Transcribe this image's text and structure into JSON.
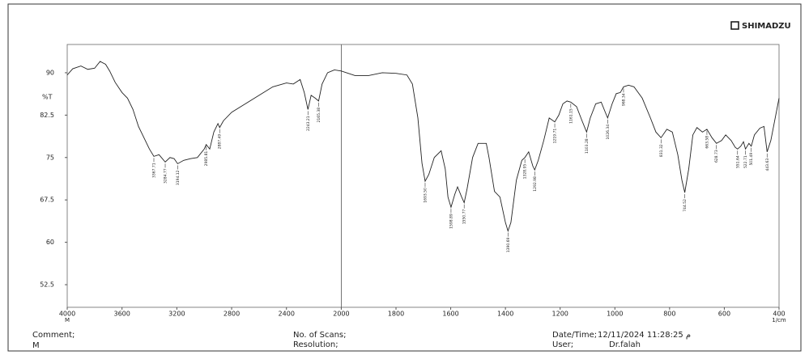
{
  "chart_data": {
    "type": "line",
    "brand": "SHIMADZU",
    "ylabel": "%T",
    "xlabel": "1/cm",
    "xlabel_left": "M",
    "color": "#222222",
    "xlim": [
      4000,
      400
    ],
    "x_break": 2000,
    "ylim": [
      48.5,
      95
    ],
    "xticks": [
      4000,
      3600,
      3200,
      2800,
      2400,
      2000,
      1800,
      1600,
      1400,
      1200,
      1000,
      800,
      600,
      400
    ],
    "yticks": [
      52.5,
      60,
      67.5,
      75,
      82.5,
      90
    ],
    "x": [
      4000,
      3960,
      3900,
      3850,
      3800,
      3760,
      3720,
      3690,
      3650,
      3600,
      3560,
      3520,
      3480,
      3440,
      3400,
      3367.71,
      3330,
      3284.77,
      3250,
      3220,
      3194.12,
      3150,
      3100,
      3050,
      3000,
      2985.81,
      2960,
      2930,
      2900,
      2887.49,
      2860,
      2800,
      2700,
      2600,
      2500,
      2400,
      2350,
      2300,
      2270,
      2243.21,
      2220,
      2190,
      2165.38,
      2140,
      2100,
      2050,
      2000,
      1950,
      1900,
      1850,
      1800,
      1760,
      1740,
      1720,
      1705,
      1693.5,
      1680,
      1660,
      1635,
      1620,
      1610,
      1598.89,
      1585,
      1575,
      1560,
      1550.77,
      1540,
      1520,
      1500,
      1470,
      1460,
      1440,
      1420,
      1400,
      1390.69,
      1380,
      1360,
      1340,
      1328.95,
      1315,
      1300,
      1292.98,
      1280,
      1260,
      1240,
      1219.71,
      1205,
      1190,
      1175,
      1161.15,
      1140,
      1120,
      1103.28,
      1090,
      1070,
      1050,
      1035,
      1026.34,
      1010,
      995,
      980,
      968.34,
      950,
      930,
      900,
      870,
      850,
      831.32,
      810,
      790,
      770,
      755,
      744.52,
      730,
      715,
      700,
      680,
      663.58,
      645,
      628.73,
      610,
      595,
      575,
      560,
      551.64,
      540,
      530,
      522.71,
      510,
      501.49,
      490,
      470,
      455,
      443.63,
      430,
      410,
      400
    ],
    "values": [
      89.6,
      90.7,
      91.2,
      90.6,
      90.8,
      92.0,
      91.5,
      90.3,
      88.3,
      86.5,
      85.5,
      83.5,
      80.5,
      78.5,
      76.5,
      75.2,
      75.5,
      74.2,
      75.0,
      74.8,
      73.9,
      74.5,
      74.8,
      75.0,
      76.5,
      77.3,
      76.5,
      79.5,
      81.0,
      80.3,
      81.5,
      83.0,
      84.5,
      86.0,
      87.5,
      88.2,
      88.0,
      88.8,
      86.5,
      83.5,
      86.0,
      85.5,
      85.0,
      88.0,
      90.0,
      90.5,
      90.3,
      89.5,
      89.5,
      90.0,
      89.9,
      89.6,
      88.0,
      82.0,
      74.0,
      70.8,
      72.0,
      75.0,
      76.2,
      73.0,
      68.0,
      66.2,
      68.5,
      69.8,
      68.0,
      67.0,
      69.5,
      75.0,
      77.5,
      77.5,
      75.0,
      69.0,
      68.0,
      63.5,
      62.0,
      63.5,
      71.0,
      74.5,
      75.0,
      76.0,
      73.5,
      72.8,
      74.5,
      78.0,
      82.0,
      81.3,
      82.5,
      84.5,
      85.0,
      84.8,
      84.0,
      81.5,
      79.5,
      82.0,
      84.5,
      84.8,
      83.0,
      82.0,
      84.5,
      86.3,
      86.5,
      87.5,
      87.8,
      87.5,
      85.5,
      82.0,
      79.5,
      78.5,
      80.0,
      79.5,
      75.5,
      71.0,
      68.8,
      73.0,
      79.0,
      80.3,
      79.5,
      80.0,
      78.5,
      77.5,
      78.0,
      79.0,
      78.0,
      76.8,
      76.5,
      77.0,
      77.8,
      76.5,
      77.5,
      77.0,
      79.0,
      80.2,
      80.5,
      76.0,
      78.0,
      83.0,
      85.5
    ],
    "peaks": [
      {
        "x": 3367.71,
        "y": 75.2,
        "label": "3367.71"
      },
      {
        "x": 3284.77,
        "y": 74.2,
        "label": "3284.77"
      },
      {
        "x": 3194.12,
        "y": 73.9,
        "label": "3194.12"
      },
      {
        "x": 2985.81,
        "y": 77.3,
        "label": "2985.81"
      },
      {
        "x": 2887.49,
        "y": 80.3,
        "label": "2887.49"
      },
      {
        "x": 2243.21,
        "y": 83.5,
        "label": "2243.21"
      },
      {
        "x": 2165.38,
        "y": 85.0,
        "label": "2165.38"
      },
      {
        "x": 1693.5,
        "y": 70.8,
        "label": "1693.50"
      },
      {
        "x": 1598.89,
        "y": 66.2,
        "label": "1598.89"
      },
      {
        "x": 1550.77,
        "y": 67.0,
        "label": "1550.77"
      },
      {
        "x": 1390.69,
        "y": 62.0,
        "label": "1390.69"
      },
      {
        "x": 1328.95,
        "y": 75.0,
        "label": "1328.95"
      },
      {
        "x": 1292.98,
        "y": 72.8,
        "label": "1292.98"
      },
      {
        "x": 1219.71,
        "y": 81.3,
        "label": "1219.71"
      },
      {
        "x": 1161.15,
        "y": 84.8,
        "label": "1161.15"
      },
      {
        "x": 1103.28,
        "y": 79.5,
        "label": "1103.28"
      },
      {
        "x": 1026.34,
        "y": 82.0,
        "label": "1026.34"
      },
      {
        "x": 968.34,
        "y": 87.5,
        "label": "968.34"
      },
      {
        "x": 831.32,
        "y": 78.5,
        "label": "831.32"
      },
      {
        "x": 744.52,
        "y": 68.8,
        "label": "744.52"
      },
      {
        "x": 663.58,
        "y": 80.0,
        "label": "663.58"
      },
      {
        "x": 628.73,
        "y": 77.5,
        "label": "628.73"
      },
      {
        "x": 551.64,
        "y": 76.5,
        "label": "551.64"
      },
      {
        "x": 522.71,
        "y": 76.5,
        "label": "522.71"
      },
      {
        "x": 501.49,
        "y": 77.0,
        "label": "501.49"
      },
      {
        "x": 443.63,
        "y": 76.0,
        "label": "443.63"
      }
    ],
    "footer": {
      "comment_label": "Comment;",
      "comment": "M",
      "scans_label": "No. of Scans;",
      "resolution_label": "Resolution;",
      "date_label": "Date/Time;",
      "date": "12/11/2024 11:28:25 م",
      "user_label": "User;",
      "user": "Dr.falah"
    }
  }
}
